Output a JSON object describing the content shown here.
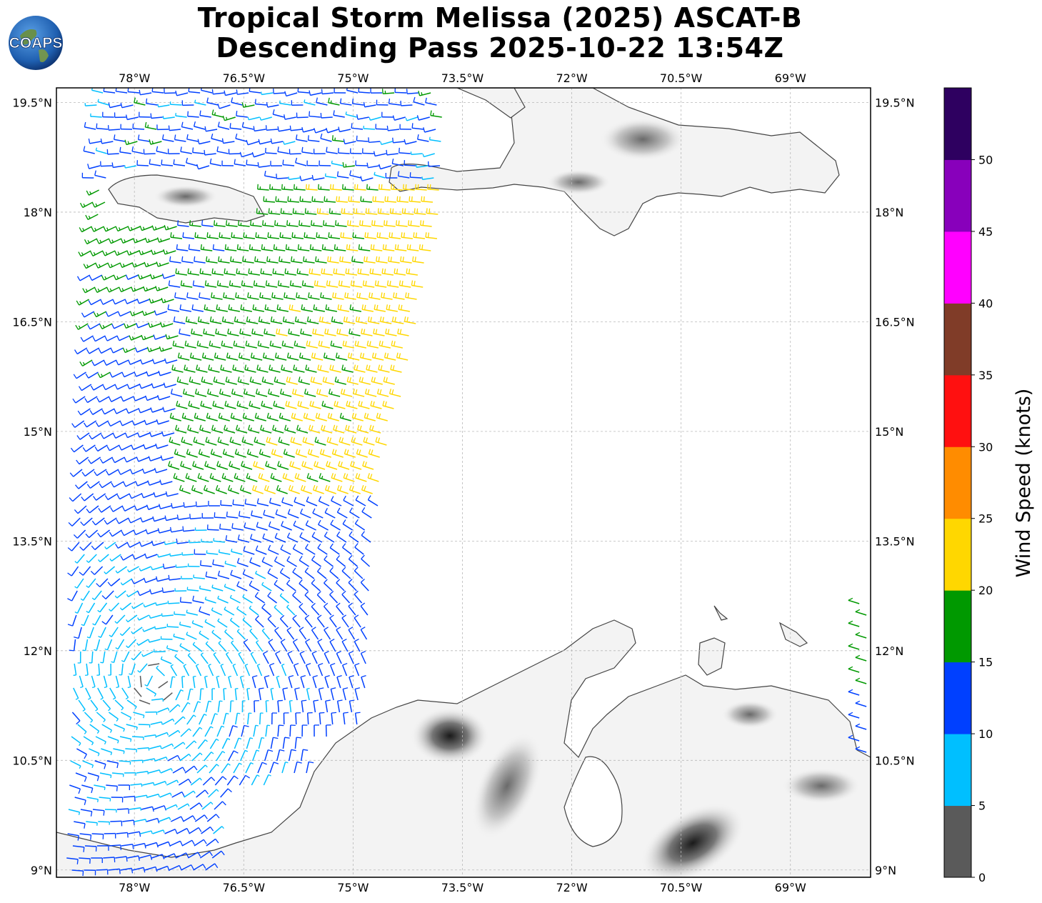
{
  "title": {
    "line1": "Tropical Storm Melissa (2025) ASCAT-B",
    "line2": "Descending Pass 2025-10-22 13:54Z"
  },
  "logo": {
    "text": "COAPS",
    "icon": "globe-icon"
  },
  "map": {
    "lon_ticks": [
      "78°W",
      "76.5°W",
      "75°W",
      "73.5°W",
      "72°W",
      "70.5°W",
      "69°W"
    ],
    "lat_ticks": [
      "19.5°N",
      "18°N",
      "16.5°N",
      "15°N",
      "13.5°N",
      "12°N",
      "10.5°N",
      "9°N"
    ],
    "lon_values": [
      -78,
      -76.5,
      -75,
      -73.5,
      -72,
      -70.5,
      -69
    ],
    "lat_values": [
      19.5,
      18,
      16.5,
      15,
      13.5,
      12,
      10.5,
      9
    ],
    "lon_range": [
      -79.07,
      -67.9
    ],
    "lat_range": [
      8.9,
      19.7
    ],
    "grid": true
  },
  "colorbar": {
    "label": "Wind Speed (knots)",
    "ticks": [
      "0",
      "5",
      "10",
      "15",
      "20",
      "25",
      "30",
      "35",
      "40",
      "45",
      "50"
    ],
    "colors": [
      "#5a5a5a",
      "#00bfff",
      "#0040ff",
      "#009900",
      "#ffd700",
      "#ff8c00",
      "#ff1010",
      "#803c28",
      "#ff00ff",
      "#8800bb",
      "#2e0060"
    ]
  }
}
